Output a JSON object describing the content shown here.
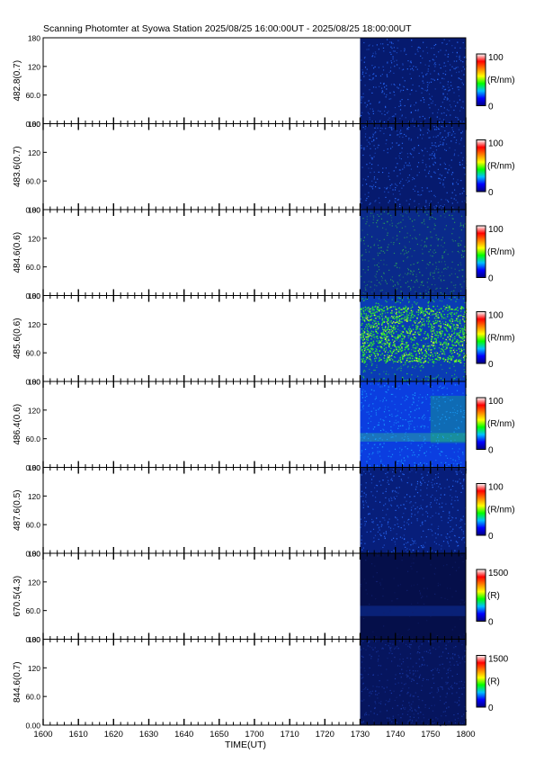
{
  "title": "Scanning Photomter at Syowa Station 2025/08/25 16:00:00UT - 2025/08/25 18:00:00UT",
  "chart_data": {
    "type": "heatmap",
    "xlabel": "TIME(UT)",
    "x_range": [
      "1600",
      "1800"
    ],
    "x_ticks": [
      "1600",
      "1610",
      "1620",
      "1630",
      "1640",
      "1650",
      "1700",
      "1710",
      "1720",
      "1730",
      "1740",
      "1750",
      "1800"
    ],
    "y_ticks": [
      "0.00",
      "60.0",
      "120",
      "180"
    ],
    "ylim": [
      0,
      180
    ],
    "data_start": "1730",
    "colormap": [
      "#000080",
      "#0000ff",
      "#00c0ff",
      "#00ff00",
      "#ffff00",
      "#ff8000",
      "#ff0000",
      "#ffffff"
    ],
    "panels": [
      {
        "ylabel": "482.8(0.7)",
        "cbar_max": "100",
        "cbar_min": "0",
        "unit": "(R/nm)",
        "background": "#061a6e",
        "speckle": "#2a6dff",
        "features": "faint noise, weak horizontal streaks near 120"
      },
      {
        "ylabel": "483.6(0.7)",
        "cbar_max": "100",
        "cbar_min": "0",
        "unit": "(R/nm)",
        "background": "#061a6e",
        "speckle": "#2a6dff",
        "features": "faint noise, weak band near 60"
      },
      {
        "ylabel": "484.6(0.6)",
        "cbar_max": "100",
        "cbar_min": "0",
        "unit": "(R/nm)",
        "background": "#0a2a8a",
        "speckle": "#2ca05a",
        "features": "noise with sparse green points"
      },
      {
        "ylabel": "485.6(0.6)",
        "cbar_max": "100",
        "cbar_min": "0",
        "unit": "(R/nm)",
        "background": "#0a3cb4",
        "speckle": "#2ee62e",
        "features": "dense green speckle between 50 and 150"
      },
      {
        "ylabel": "486.4(0.6)",
        "cbar_max": "100",
        "cbar_min": "0",
        "unit": "(R/nm)",
        "background": "#0b3ee0",
        "speckle": "#1aa0ff",
        "features": "H-beta band near 60, brighter patch at 1750-1800"
      },
      {
        "ylabel": "487.6(0.5)",
        "cbar_max": "100",
        "cbar_min": "0",
        "unit": "(R/nm)",
        "background": "#071e7a",
        "speckle": "#2a6dff",
        "features": "faint noise"
      },
      {
        "ylabel": "670.5(4.3)",
        "cbar_max": "1500",
        "cbar_min": "0",
        "unit": "(R)",
        "background": "#050f4a",
        "speckle": "#10206e",
        "features": "dark smooth, faint band near 60"
      },
      {
        "ylabel": "844.6(0.7)",
        "cbar_max": "1500",
        "cbar_min": "0",
        "unit": "(R)",
        "background": "#06155e",
        "speckle": "#1a3aa8",
        "features": "dark with sparse points"
      }
    ]
  }
}
